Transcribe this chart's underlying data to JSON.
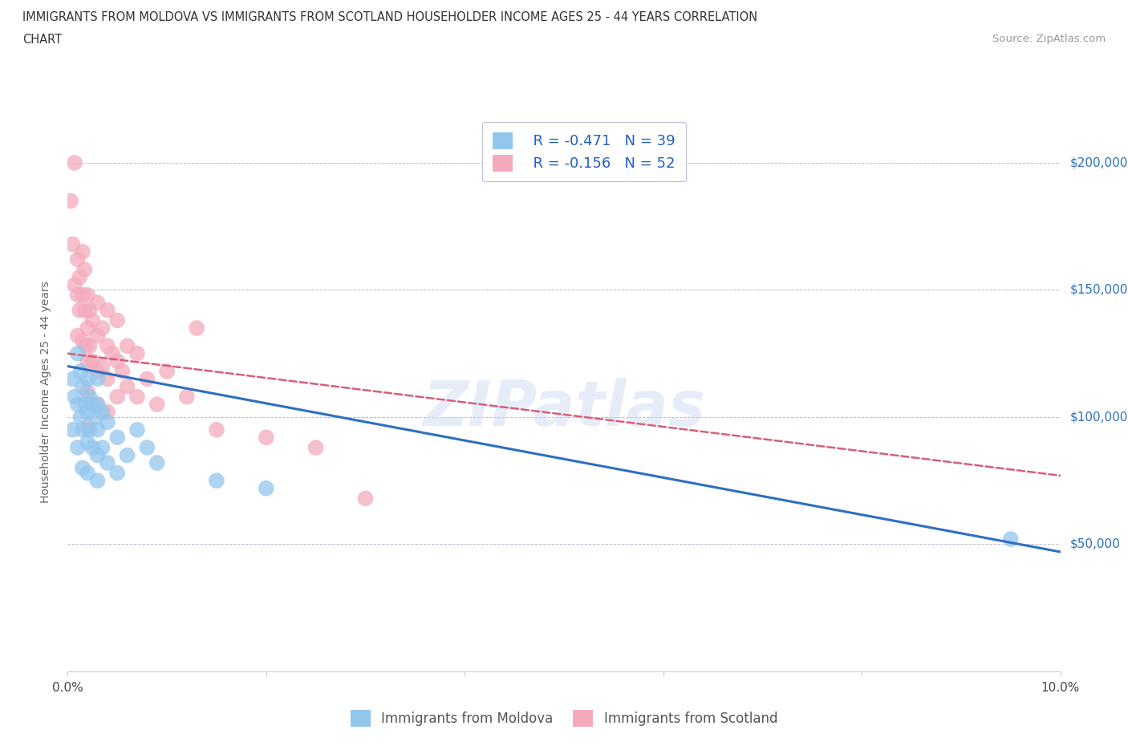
{
  "title_line1": "IMMIGRANTS FROM MOLDOVA VS IMMIGRANTS FROM SCOTLAND HOUSEHOLDER INCOME AGES 25 - 44 YEARS CORRELATION",
  "title_line2": "CHART",
  "source": "Source: ZipAtlas.com",
  "ylabel": "Householder Income Ages 25 - 44 years",
  "xlim": [
    0.0,
    0.1
  ],
  "ylim": [
    0,
    220000
  ],
  "yticks": [
    0,
    50000,
    100000,
    150000,
    200000
  ],
  "ytick_labels": [
    "",
    "$50,000",
    "$100,000",
    "$150,000",
    "$200,000"
  ],
  "xticks": [
    0.0,
    0.02,
    0.04,
    0.06,
    0.08,
    0.1
  ],
  "xtick_labels": [
    "0.0%",
    "",
    "",
    "",
    "",
    "10.0%"
  ],
  "moldova_color": "#93C6ED",
  "scotland_color": "#F4AABC",
  "moldova_line_color": "#2E6FBF",
  "scotland_line_color": "#D4607A",
  "r_moldova": -0.471,
  "n_moldova": 39,
  "r_scotland": -0.156,
  "n_scotland": 52,
  "legend_label_moldova": "Immigrants from Moldova",
  "legend_label_scotland": "Immigrants from Scotland",
  "moldova_x": [
    0.0005,
    0.0005,
    0.0007,
    0.001,
    0.001,
    0.001,
    0.0013,
    0.0013,
    0.0015,
    0.0015,
    0.0015,
    0.0018,
    0.002,
    0.002,
    0.002,
    0.002,
    0.0022,
    0.0022,
    0.0025,
    0.0025,
    0.0028,
    0.003,
    0.003,
    0.003,
    0.003,
    0.003,
    0.0035,
    0.0035,
    0.004,
    0.004,
    0.005,
    0.005,
    0.006,
    0.007,
    0.008,
    0.009,
    0.015,
    0.02,
    0.095
  ],
  "moldova_y": [
    115000,
    95000,
    108000,
    125000,
    105000,
    88000,
    118000,
    100000,
    112000,
    95000,
    80000,
    105000,
    115000,
    102000,
    90000,
    78000,
    108000,
    95000,
    105000,
    88000,
    100000,
    115000,
    105000,
    95000,
    85000,
    75000,
    102000,
    88000,
    98000,
    82000,
    92000,
    78000,
    85000,
    95000,
    88000,
    82000,
    75000,
    72000,
    52000
  ],
  "scotland_x": [
    0.0003,
    0.0005,
    0.0007,
    0.0007,
    0.001,
    0.001,
    0.001,
    0.0012,
    0.0012,
    0.0015,
    0.0015,
    0.0015,
    0.0017,
    0.0017,
    0.0018,
    0.002,
    0.002,
    0.002,
    0.002,
    0.002,
    0.0022,
    0.0022,
    0.0025,
    0.0025,
    0.003,
    0.003,
    0.003,
    0.003,
    0.0035,
    0.0035,
    0.004,
    0.004,
    0.004,
    0.004,
    0.0045,
    0.005,
    0.005,
    0.005,
    0.0055,
    0.006,
    0.006,
    0.007,
    0.007,
    0.008,
    0.009,
    0.01,
    0.012,
    0.013,
    0.015,
    0.02,
    0.025,
    0.03
  ],
  "scotland_y": [
    185000,
    168000,
    200000,
    152000,
    162000,
    148000,
    132000,
    155000,
    142000,
    165000,
    148000,
    130000,
    158000,
    142000,
    128000,
    148000,
    135000,
    122000,
    110000,
    96000,
    142000,
    128000,
    138000,
    122000,
    145000,
    132000,
    118000,
    105000,
    135000,
    120000,
    142000,
    128000,
    115000,
    102000,
    125000,
    138000,
    122000,
    108000,
    118000,
    128000,
    112000,
    125000,
    108000,
    115000,
    105000,
    118000,
    108000,
    135000,
    95000,
    92000,
    88000,
    68000
  ],
  "moldova_intercept": 120000,
  "moldova_slope": -730000,
  "scotland_intercept": 125000,
  "scotland_slope": -480000
}
